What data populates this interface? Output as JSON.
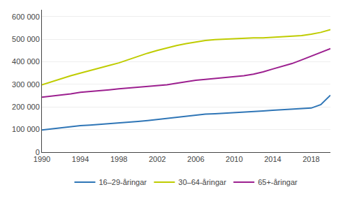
{
  "chart_data": {
    "type": "line",
    "x": [
      1990,
      1991,
      1992,
      1993,
      1994,
      1995,
      1996,
      1997,
      1998,
      1999,
      2000,
      2001,
      2002,
      2003,
      2004,
      2005,
      2006,
      2007,
      2008,
      2009,
      2010,
      2011,
      2012,
      2013,
      2014,
      2015,
      2016,
      2017,
      2018,
      2019,
      2020
    ],
    "series": [
      {
        "name": "16–29-åringar",
        "color": "#2e75b6",
        "values": [
          98000,
          103000,
          107000,
          112000,
          117000,
          120000,
          123000,
          126000,
          128000,
          132000,
          136000,
          140000,
          145000,
          150000,
          155000,
          160000,
          165000,
          168000,
          170000,
          172000,
          175000,
          178000,
          180000,
          182000,
          185000,
          187000,
          190000,
          192000,
          195000,
          210000,
          252000
        ]
      },
      {
        "name": "30–64-åringar",
        "color": "#bfcc00",
        "values": [
          298000,
          312000,
          325000,
          338000,
          350000,
          362000,
          373000,
          384000,
          395000,
          410000,
          425000,
          438000,
          450000,
          462000,
          472000,
          480000,
          488000,
          494000,
          498000,
          500000,
          504000,
          506000,
          506000,
          506000,
          508000,
          510000,
          512000,
          516000,
          522000,
          530000,
          542000
        ]
      },
      {
        "name": "65+-åringar",
        "color": "#9c1f8f",
        "values": [
          243000,
          248000,
          252000,
          258000,
          265000,
          268000,
          272000,
          276000,
          280000,
          284000,
          287000,
          290000,
          294000,
          298000,
          305000,
          312000,
          318000,
          322000,
          326000,
          328000,
          332000,
          338000,
          345000,
          355000,
          368000,
          380000,
          392000,
          408000,
          425000,
          440000,
          458000
        ]
      }
    ],
    "xlim": [
      1990,
      2020
    ],
    "xticks": [
      1990,
      1994,
      1998,
      2002,
      2006,
      2010,
      2014,
      2018
    ],
    "ylim": [
      0,
      630000
    ],
    "yticks": [
      0,
      {
        "value": 100000,
        "label": "100 000"
      },
      {
        "value": 200000,
        "label": "200 000"
      },
      {
        "value": 300000,
        "label": "300 000"
      },
      {
        "value": 400000,
        "label": "400 000"
      },
      {
        "value": 500000,
        "label": "500 000"
      },
      {
        "value": 600000,
        "label": "600 000"
      }
    ],
    "grid": "y",
    "legend": "bottom"
  }
}
